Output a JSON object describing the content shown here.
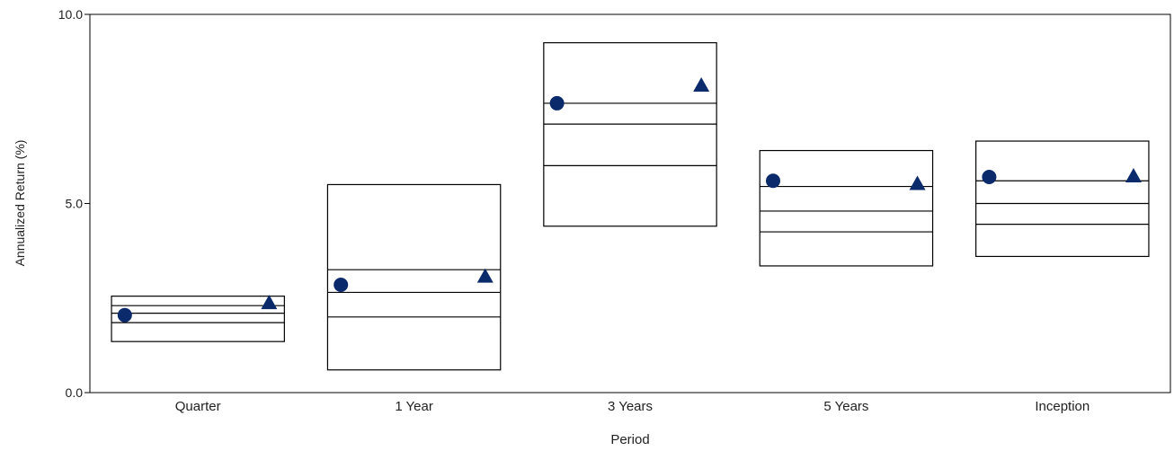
{
  "chart_data": {
    "type": "box",
    "title": "",
    "xlabel": "Period",
    "ylabel": "Annualized Return (%)",
    "ylim": [
      0,
      10
    ],
    "yticks": [
      "0.0",
      "5.0",
      "10.0"
    ],
    "grid": false,
    "categories": [
      "Quarter",
      "1 Year",
      "3 Years",
      "5 Years",
      "Inception"
    ],
    "boxes": [
      {
        "category": "Quarter",
        "max": 2.55,
        "q3": 2.3,
        "median": 2.1,
        "q1": 1.85,
        "min": 1.35
      },
      {
        "category": "1 Year",
        "max": 5.5,
        "q3": 3.25,
        "median": 2.65,
        "q1": 2.0,
        "min": 0.6
      },
      {
        "category": "3 Years",
        "max": 9.25,
        "q3": 7.65,
        "median": 7.1,
        "q1": 6.0,
        "min": 4.4
      },
      {
        "category": "5 Years",
        "max": 6.4,
        "q3": 5.45,
        "median": 4.8,
        "q1": 4.25,
        "min": 3.35
      },
      {
        "category": "Inception",
        "max": 6.65,
        "q3": 5.6,
        "median": 5.0,
        "q1": 4.45,
        "min": 3.6
      }
    ],
    "series": [
      {
        "marker": "circle",
        "color": "#0b2a6b",
        "values": [
          2.05,
          2.85,
          7.65,
          5.6,
          5.7
        ]
      },
      {
        "marker": "triangle",
        "color": "#0b2a6b",
        "values": [
          2.35,
          3.05,
          8.1,
          5.5,
          5.7
        ]
      }
    ]
  }
}
